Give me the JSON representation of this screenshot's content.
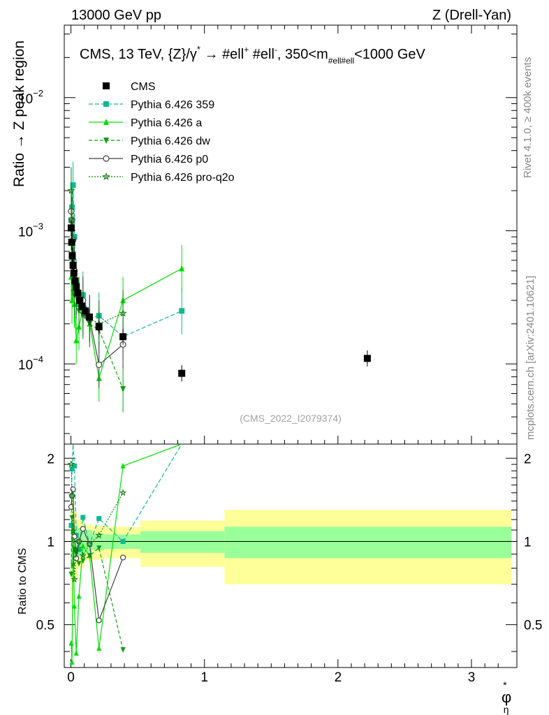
{
  "header": {
    "left": "13000 GeV pp",
    "right": "Z (Drell-Yan)"
  },
  "side_labels": {
    "rivet": "Rivet 4.1.0, ≥ 400k events",
    "mcplots": "mcplots.cern.ch [arXiv:2401.10621]"
  },
  "watermark": "(CMS_2022_I2079374)",
  "colors": {
    "cms": "#000000",
    "p359": "#10b890",
    "pa": "#00e000",
    "pdw": "#10a010",
    "pp0": "#404040",
    "pq2o": "#108010",
    "band_inner": "#99ff99",
    "band_outer": "#ffff99"
  },
  "chart_data": {
    "type": "scatter",
    "title": {
      "prefix": "CMS, 13 TeV, {Z}/γ",
      "star": "*",
      "arrow": " → ",
      "ell1": "#ell",
      "plus": "+",
      "ell2": " #ell",
      "minus": "-",
      "range1": ", 350<m",
      "sub": "#ell#ell",
      "range2": "<1000 GeV"
    },
    "ylabel": "Ratio → Z peak region",
    "ratio_ylabel": "Ratio to CMS",
    "xlabel": "φ",
    "xlabel_star": "*",
    "xlabel_sub": "η",
    "xlim": [
      -0.05,
      3.34
    ],
    "ylim": [
      2.5e-05,
      0.035
    ],
    "ratio_ylim": [
      0.35,
      2.25
    ],
    "x_ticks": [
      "0",
      "1",
      "2",
      "3"
    ],
    "y_ticks": [
      {
        "base": "10",
        "exp": "−2"
      },
      {
        "base": "10",
        "exp": "−3"
      },
      {
        "base": "10",
        "exp": "−4"
      }
    ],
    "ratio_ticks": [
      "2",
      "1",
      "0.5"
    ],
    "legend": [
      {
        "name": "CMS",
        "key": "cms"
      },
      {
        "name": "Pythia 6.426 359",
        "key": "p359"
      },
      {
        "name": "Pythia 6.426 a",
        "key": "pa"
      },
      {
        "name": "Pythia 6.426 dw",
        "key": "pdw"
      },
      {
        "name": "Pythia 6.426 p0",
        "key": "pp0"
      },
      {
        "name": "Pythia 6.426 pro-q2o",
        "key": "pq2o"
      }
    ],
    "cms": {
      "x": [
        0.002,
        0.006,
        0.01,
        0.016,
        0.022,
        0.03,
        0.04,
        0.052,
        0.066,
        0.084,
        0.107,
        0.138,
        0.21,
        0.39,
        0.83,
        2.22
      ],
      "y": [
        0.00105,
        0.00082,
        0.00065,
        0.00055,
        0.00048,
        0.00042,
        0.00038,
        0.00034,
        0.0003,
        0.00027,
        0.00025,
        0.000225,
        0.00019,
        0.00016,
        8.5e-05,
        0.00011
      ]
    },
    "bands": {
      "edges": [
        0.0,
        0.02,
        0.05,
        0.1,
        0.16,
        0.25,
        0.52,
        1.15,
        3.3
      ],
      "inner_lo": [
        0.8,
        0.85,
        0.88,
        0.9,
        0.93,
        0.94,
        0.91,
        0.87
      ],
      "inner_hi": [
        1.2,
        1.15,
        1.12,
        1.1,
        1.07,
        1.06,
        1.09,
        1.13
      ],
      "outer_lo": [
        0.6,
        0.72,
        0.8,
        0.85,
        0.86,
        0.87,
        0.81,
        0.7
      ],
      "outer_hi": [
        1.4,
        1.28,
        1.2,
        1.15,
        1.14,
        1.13,
        1.19,
        1.3
      ]
    },
    "series": [
      {
        "key": "p359",
        "marker": "square",
        "dash": "6,3",
        "x": [
          0.002,
          0.008,
          0.016,
          0.026,
          0.04,
          0.06,
          0.09,
          0.14,
          0.21,
          0.39,
          0.83
        ],
        "y": [
          0.0012,
          0.0015,
          0.0022,
          0.0009,
          0.0004,
          0.00028,
          0.00033,
          0.00022,
          0.00023,
          0.00016,
          0.00025
        ]
      },
      {
        "key": "pa",
        "marker": "triangle",
        "dash": "",
        "x": [
          0.002,
          0.008,
          0.016,
          0.026,
          0.04,
          0.06,
          0.09,
          0.14,
          0.21,
          0.39,
          0.83
        ],
        "y": [
          0.00045,
          0.0003,
          0.0006,
          0.00028,
          0.00015,
          0.00019,
          0.00026,
          0.0002,
          7.8e-05,
          0.0003,
          0.00052
        ]
      },
      {
        "key": "pdw",
        "marker": "tridown",
        "dash": "5,3",
        "x": [
          0.002,
          0.008,
          0.016,
          0.026,
          0.04,
          0.06,
          0.09,
          0.14,
          0.21,
          0.39
        ],
        "y": [
          0.0008,
          0.001,
          0.00045,
          0.00045,
          0.00035,
          0.00025,
          0.00023,
          0.0002,
          0.00018,
          6.5e-05
        ]
      },
      {
        "key": "pp0",
        "marker": "circle",
        "dash": "",
        "x": [
          0.002,
          0.008,
          0.016,
          0.026,
          0.04,
          0.06,
          0.09,
          0.14,
          0.21,
          0.39
        ],
        "y": [
          0.0014,
          0.0012,
          0.00085,
          0.0005,
          0.00033,
          0.0003,
          0.0003,
          0.00022,
          9.85e-05,
          0.00014
        ]
      },
      {
        "key": "pq2o",
        "marker": "star",
        "dash": "2,2",
        "x": [
          0.002,
          0.008,
          0.016,
          0.026,
          0.04,
          0.06,
          0.09,
          0.14,
          0.21,
          0.39
        ],
        "y": [
          0.002,
          0.0012,
          0.0006,
          0.00035,
          0.00035,
          0.0003,
          0.00024,
          0.00022,
          0.0002,
          0.00024
        ]
      }
    ]
  }
}
